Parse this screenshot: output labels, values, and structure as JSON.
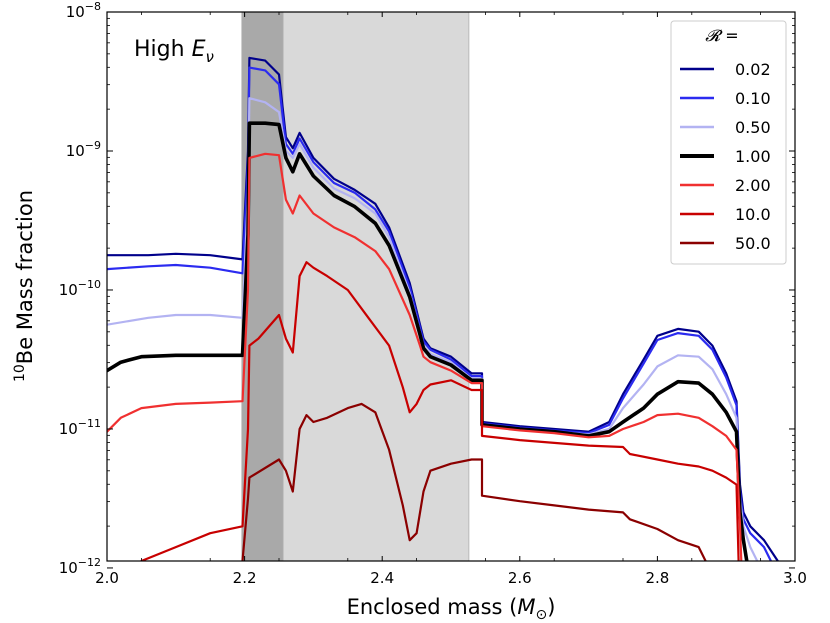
{
  "chart_data": {
    "type": "line",
    "xlabel": "Enclosed mass",
    "xlabel_unit": "M",
    "xlabel_unit_sub": "⊙",
    "ylabel_sup": "10",
    "ylabel": "Be Mass fraction",
    "xlim": [
      2.0,
      3.0
    ],
    "ylim_log10": [
      -11.95,
      -8.0
    ],
    "yscale": "log",
    "x_ticks": [
      {
        "value": 2.0,
        "label": "2.0"
      },
      {
        "value": 2.2,
        "label": "2.2"
      },
      {
        "value": 2.4,
        "label": "2.4"
      },
      {
        "value": 2.6,
        "label": "2.6"
      },
      {
        "value": 2.8,
        "label": "2.8"
      },
      {
        "value": 3.0,
        "label": "3.0"
      }
    ],
    "y_ticks": [
      {
        "value": -12,
        "base": "10",
        "exp": "−12"
      },
      {
        "value": -11,
        "base": "10",
        "exp": "−11"
      },
      {
        "value": -10,
        "base": "10",
        "exp": "−10"
      },
      {
        "value": -9,
        "base": "10",
        "exp": "−9"
      },
      {
        "value": -8,
        "base": "10",
        "exp": "−8"
      }
    ],
    "annotation": {
      "text": "High ",
      "symbol": "E",
      "subscript": "ν"
    },
    "legend": {
      "title": "𝓡 =",
      "location": "top-right"
    },
    "shaded_regions": [
      {
        "x0": 2.196,
        "x1": 2.526,
        "color": "#d9d9d9"
      },
      {
        "x0": 2.196,
        "x1": 2.256,
        "color": "#a9a9a9"
      }
    ],
    "series": [
      {
        "name": "0.02",
        "color": "#00008b",
        "width": 2.2,
        "points": [
          [
            2.0,
            -9.75
          ],
          [
            2.06,
            -9.75
          ],
          [
            2.1,
            -9.74
          ],
          [
            2.15,
            -9.75
          ],
          [
            2.197,
            -9.78
          ],
          [
            2.197,
            -9.78
          ],
          [
            2.205,
            -9.0
          ],
          [
            2.207,
            -8.33
          ],
          [
            2.23,
            -8.35
          ],
          [
            2.25,
            -8.45
          ],
          [
            2.26,
            -8.9
          ],
          [
            2.27,
            -8.98
          ],
          [
            2.28,
            -8.87
          ],
          [
            2.3,
            -9.05
          ],
          [
            2.33,
            -9.2
          ],
          [
            2.36,
            -9.28
          ],
          [
            2.39,
            -9.38
          ],
          [
            2.41,
            -9.55
          ],
          [
            2.44,
            -9.95
          ],
          [
            2.455,
            -10.25
          ],
          [
            2.46,
            -10.35
          ],
          [
            2.47,
            -10.42
          ],
          [
            2.5,
            -10.48
          ],
          [
            2.53,
            -10.6
          ],
          [
            2.535,
            -10.6
          ],
          [
            2.545,
            -10.6
          ],
          [
            2.545,
            -10.95
          ],
          [
            2.6,
            -10.98
          ],
          [
            2.65,
            -11.0
          ],
          [
            2.7,
            -11.02
          ],
          [
            2.73,
            -10.95
          ],
          [
            2.75,
            -10.75
          ],
          [
            2.78,
            -10.5
          ],
          [
            2.8,
            -10.33
          ],
          [
            2.83,
            -10.28
          ],
          [
            2.86,
            -10.3
          ],
          [
            2.88,
            -10.4
          ],
          [
            2.9,
            -10.6
          ],
          [
            2.915,
            -10.8
          ],
          [
            2.92,
            -11.4
          ],
          [
            2.925,
            -11.6
          ],
          [
            2.935,
            -11.7
          ],
          [
            2.955,
            -11.8
          ],
          [
            2.975,
            -11.95
          ]
        ]
      },
      {
        "name": "0.10",
        "color": "#2b2bf0",
        "width": 2.2,
        "points": [
          [
            2.0,
            -9.85
          ],
          [
            2.06,
            -9.83
          ],
          [
            2.1,
            -9.82
          ],
          [
            2.15,
            -9.84
          ],
          [
            2.197,
            -9.88
          ],
          [
            2.197,
            -9.88
          ],
          [
            2.205,
            -9.1
          ],
          [
            2.207,
            -8.4
          ],
          [
            2.23,
            -8.42
          ],
          [
            2.25,
            -8.52
          ],
          [
            2.26,
            -8.95
          ],
          [
            2.27,
            -9.02
          ],
          [
            2.28,
            -8.91
          ],
          [
            2.3,
            -9.08
          ],
          [
            2.33,
            -9.23
          ],
          [
            2.36,
            -9.3
          ],
          [
            2.39,
            -9.42
          ],
          [
            2.41,
            -9.58
          ],
          [
            2.44,
            -9.98
          ],
          [
            2.455,
            -10.27
          ],
          [
            2.46,
            -10.37
          ],
          [
            2.47,
            -10.43
          ],
          [
            2.5,
            -10.5
          ],
          [
            2.53,
            -10.62
          ],
          [
            2.535,
            -10.62
          ],
          [
            2.545,
            -10.62
          ],
          [
            2.545,
            -10.96
          ],
          [
            2.6,
            -10.99
          ],
          [
            2.65,
            -11.01
          ],
          [
            2.7,
            -11.03
          ],
          [
            2.73,
            -10.97
          ],
          [
            2.75,
            -10.78
          ],
          [
            2.78,
            -10.53
          ],
          [
            2.8,
            -10.36
          ],
          [
            2.83,
            -10.31
          ],
          [
            2.86,
            -10.33
          ],
          [
            2.88,
            -10.43
          ],
          [
            2.9,
            -10.63
          ],
          [
            2.915,
            -10.83
          ],
          [
            2.92,
            -11.45
          ],
          [
            2.925,
            -11.65
          ],
          [
            2.935,
            -11.75
          ],
          [
            2.955,
            -11.85
          ],
          [
            2.965,
            -11.95
          ]
        ]
      },
      {
        "name": "0.50",
        "color": "#b3b3f2",
        "width": 2.2,
        "points": [
          [
            2.0,
            -10.25
          ],
          [
            2.06,
            -10.2
          ],
          [
            2.1,
            -10.18
          ],
          [
            2.15,
            -10.18
          ],
          [
            2.197,
            -10.2
          ],
          [
            2.197,
            -10.2
          ],
          [
            2.205,
            -9.3
          ],
          [
            2.207,
            -8.62
          ],
          [
            2.23,
            -8.65
          ],
          [
            2.25,
            -8.72
          ],
          [
            2.26,
            -9.0
          ],
          [
            2.27,
            -9.05
          ],
          [
            2.28,
            -8.95
          ],
          [
            2.3,
            -9.12
          ],
          [
            2.33,
            -9.27
          ],
          [
            2.36,
            -9.34
          ],
          [
            2.39,
            -9.45
          ],
          [
            2.41,
            -9.62
          ],
          [
            2.44,
            -10.02
          ],
          [
            2.455,
            -10.3
          ],
          [
            2.46,
            -10.4
          ],
          [
            2.47,
            -10.46
          ],
          [
            2.5,
            -10.52
          ],
          [
            2.53,
            -10.64
          ],
          [
            2.535,
            -10.64
          ],
          [
            2.545,
            -10.64
          ],
          [
            2.545,
            -10.97
          ],
          [
            2.6,
            -11.0
          ],
          [
            2.65,
            -11.02
          ],
          [
            2.7,
            -11.04
          ],
          [
            2.73,
            -11.0
          ],
          [
            2.75,
            -10.85
          ],
          [
            2.78,
            -10.68
          ],
          [
            2.8,
            -10.55
          ],
          [
            2.83,
            -10.47
          ],
          [
            2.86,
            -10.48
          ],
          [
            2.88,
            -10.57
          ],
          [
            2.9,
            -10.75
          ],
          [
            2.915,
            -10.92
          ],
          [
            2.92,
            -11.5
          ],
          [
            2.925,
            -11.7
          ],
          [
            2.935,
            -11.85
          ],
          [
            2.945,
            -11.95
          ]
        ]
      },
      {
        "name": "1.00",
        "color": "#000000",
        "width": 3.6,
        "points": [
          [
            2.0,
            -10.58
          ],
          [
            2.02,
            -10.52
          ],
          [
            2.05,
            -10.48
          ],
          [
            2.1,
            -10.47
          ],
          [
            2.15,
            -10.47
          ],
          [
            2.197,
            -10.47
          ],
          [
            2.205,
            -9.6
          ],
          [
            2.207,
            -8.8
          ],
          [
            2.23,
            -8.8
          ],
          [
            2.25,
            -8.81
          ],
          [
            2.26,
            -9.05
          ],
          [
            2.27,
            -9.15
          ],
          [
            2.28,
            -9.02
          ],
          [
            2.3,
            -9.18
          ],
          [
            2.33,
            -9.32
          ],
          [
            2.36,
            -9.4
          ],
          [
            2.39,
            -9.52
          ],
          [
            2.41,
            -9.68
          ],
          [
            2.44,
            -10.05
          ],
          [
            2.455,
            -10.32
          ],
          [
            2.46,
            -10.42
          ],
          [
            2.47,
            -10.48
          ],
          [
            2.5,
            -10.54
          ],
          [
            2.53,
            -10.65
          ],
          [
            2.535,
            -10.65
          ],
          [
            2.545,
            -10.65
          ],
          [
            2.545,
            -10.97
          ],
          [
            2.6,
            -11.0
          ],
          [
            2.65,
            -11.02
          ],
          [
            2.7,
            -11.05
          ],
          [
            2.73,
            -11.02
          ],
          [
            2.75,
            -10.95
          ],
          [
            2.78,
            -10.85
          ],
          [
            2.8,
            -10.75
          ],
          [
            2.83,
            -10.66
          ],
          [
            2.86,
            -10.67
          ],
          [
            2.88,
            -10.75
          ],
          [
            2.9,
            -10.88
          ],
          [
            2.915,
            -11.02
          ],
          [
            2.92,
            -11.6
          ],
          [
            2.925,
            -11.8
          ],
          [
            2.93,
            -11.95
          ]
        ]
      },
      {
        "name": "2.00",
        "color": "#f03030",
        "width": 2.2,
        "points": [
          [
            2.0,
            -11.02
          ],
          [
            2.02,
            -10.92
          ],
          [
            2.05,
            -10.85
          ],
          [
            2.1,
            -10.82
          ],
          [
            2.15,
            -10.81
          ],
          [
            2.197,
            -10.8
          ],
          [
            2.205,
            -10.0
          ],
          [
            2.207,
            -9.05
          ],
          [
            2.23,
            -9.02
          ],
          [
            2.25,
            -9.03
          ],
          [
            2.26,
            -9.35
          ],
          [
            2.27,
            -9.45
          ],
          [
            2.28,
            -9.32
          ],
          [
            2.3,
            -9.45
          ],
          [
            2.33,
            -9.55
          ],
          [
            2.36,
            -9.62
          ],
          [
            2.39,
            -9.72
          ],
          [
            2.41,
            -9.85
          ],
          [
            2.44,
            -10.18
          ],
          [
            2.455,
            -10.4
          ],
          [
            2.46,
            -10.48
          ],
          [
            2.47,
            -10.52
          ],
          [
            2.5,
            -10.58
          ],
          [
            2.53,
            -10.67
          ],
          [
            2.535,
            -10.67
          ],
          [
            2.545,
            -10.67
          ],
          [
            2.545,
            -10.98
          ],
          [
            2.6,
            -11.01
          ],
          [
            2.65,
            -11.03
          ],
          [
            2.7,
            -11.06
          ],
          [
            2.73,
            -11.05
          ],
          [
            2.75,
            -11.0
          ],
          [
            2.78,
            -10.95
          ],
          [
            2.8,
            -10.9
          ],
          [
            2.83,
            -10.89
          ],
          [
            2.86,
            -10.92
          ],
          [
            2.88,
            -10.98
          ],
          [
            2.9,
            -11.05
          ],
          [
            2.915,
            -11.15
          ],
          [
            2.92,
            -11.7
          ],
          [
            2.922,
            -11.95
          ]
        ]
      },
      {
        "name": "10.0",
        "color": "#c80000",
        "width": 2.2,
        "points": [
          [
            2.05,
            -11.95
          ],
          [
            2.1,
            -11.85
          ],
          [
            2.15,
            -11.75
          ],
          [
            2.197,
            -11.7
          ],
          [
            2.205,
            -11.0
          ],
          [
            2.207,
            -10.4
          ],
          [
            2.22,
            -10.35
          ],
          [
            2.25,
            -10.18
          ],
          [
            2.26,
            -10.35
          ],
          [
            2.27,
            -10.45
          ],
          [
            2.28,
            -9.9
          ],
          [
            2.29,
            -9.8
          ],
          [
            2.3,
            -9.84
          ],
          [
            2.32,
            -9.9
          ],
          [
            2.35,
            -10.0
          ],
          [
            2.38,
            -10.2
          ],
          [
            2.41,
            -10.4
          ],
          [
            2.43,
            -10.7
          ],
          [
            2.44,
            -10.88
          ],
          [
            2.45,
            -10.82
          ],
          [
            2.46,
            -10.72
          ],
          [
            2.47,
            -10.68
          ],
          [
            2.5,
            -10.65
          ],
          [
            2.53,
            -10.72
          ],
          [
            2.535,
            -10.72
          ],
          [
            2.545,
            -10.72
          ],
          [
            2.545,
            -11.05
          ],
          [
            2.6,
            -11.08
          ],
          [
            2.65,
            -11.1
          ],
          [
            2.7,
            -11.12
          ],
          [
            2.75,
            -11.13
          ],
          [
            2.76,
            -11.18
          ],
          [
            2.8,
            -11.22
          ],
          [
            2.83,
            -11.25
          ],
          [
            2.86,
            -11.27
          ],
          [
            2.88,
            -11.3
          ],
          [
            2.9,
            -11.35
          ],
          [
            2.915,
            -11.4
          ],
          [
            2.918,
            -11.95
          ]
        ]
      },
      {
        "name": "50.0",
        "color": "#8b0000",
        "width": 2.2,
        "points": [
          [
            2.197,
            -11.95
          ],
          [
            2.205,
            -11.5
          ],
          [
            2.207,
            -11.35
          ],
          [
            2.25,
            -11.22
          ],
          [
            2.26,
            -11.3
          ],
          [
            2.27,
            -11.45
          ],
          [
            2.28,
            -11.0
          ],
          [
            2.29,
            -10.9
          ],
          [
            2.3,
            -10.95
          ],
          [
            2.32,
            -10.92
          ],
          [
            2.35,
            -10.85
          ],
          [
            2.37,
            -10.82
          ],
          [
            2.39,
            -10.88
          ],
          [
            2.41,
            -11.15
          ],
          [
            2.43,
            -11.55
          ],
          [
            2.44,
            -11.8
          ],
          [
            2.45,
            -11.75
          ],
          [
            2.46,
            -11.45
          ],
          [
            2.47,
            -11.3
          ],
          [
            2.5,
            -11.25
          ],
          [
            2.53,
            -11.22
          ],
          [
            2.535,
            -11.22
          ],
          [
            2.545,
            -11.22
          ],
          [
            2.545,
            -11.48
          ],
          [
            2.6,
            -11.52
          ],
          [
            2.65,
            -11.55
          ],
          [
            2.7,
            -11.58
          ],
          [
            2.75,
            -11.6
          ],
          [
            2.76,
            -11.65
          ],
          [
            2.8,
            -11.72
          ],
          [
            2.83,
            -11.8
          ],
          [
            2.86,
            -11.85
          ],
          [
            2.87,
            -11.95
          ]
        ]
      }
    ]
  }
}
